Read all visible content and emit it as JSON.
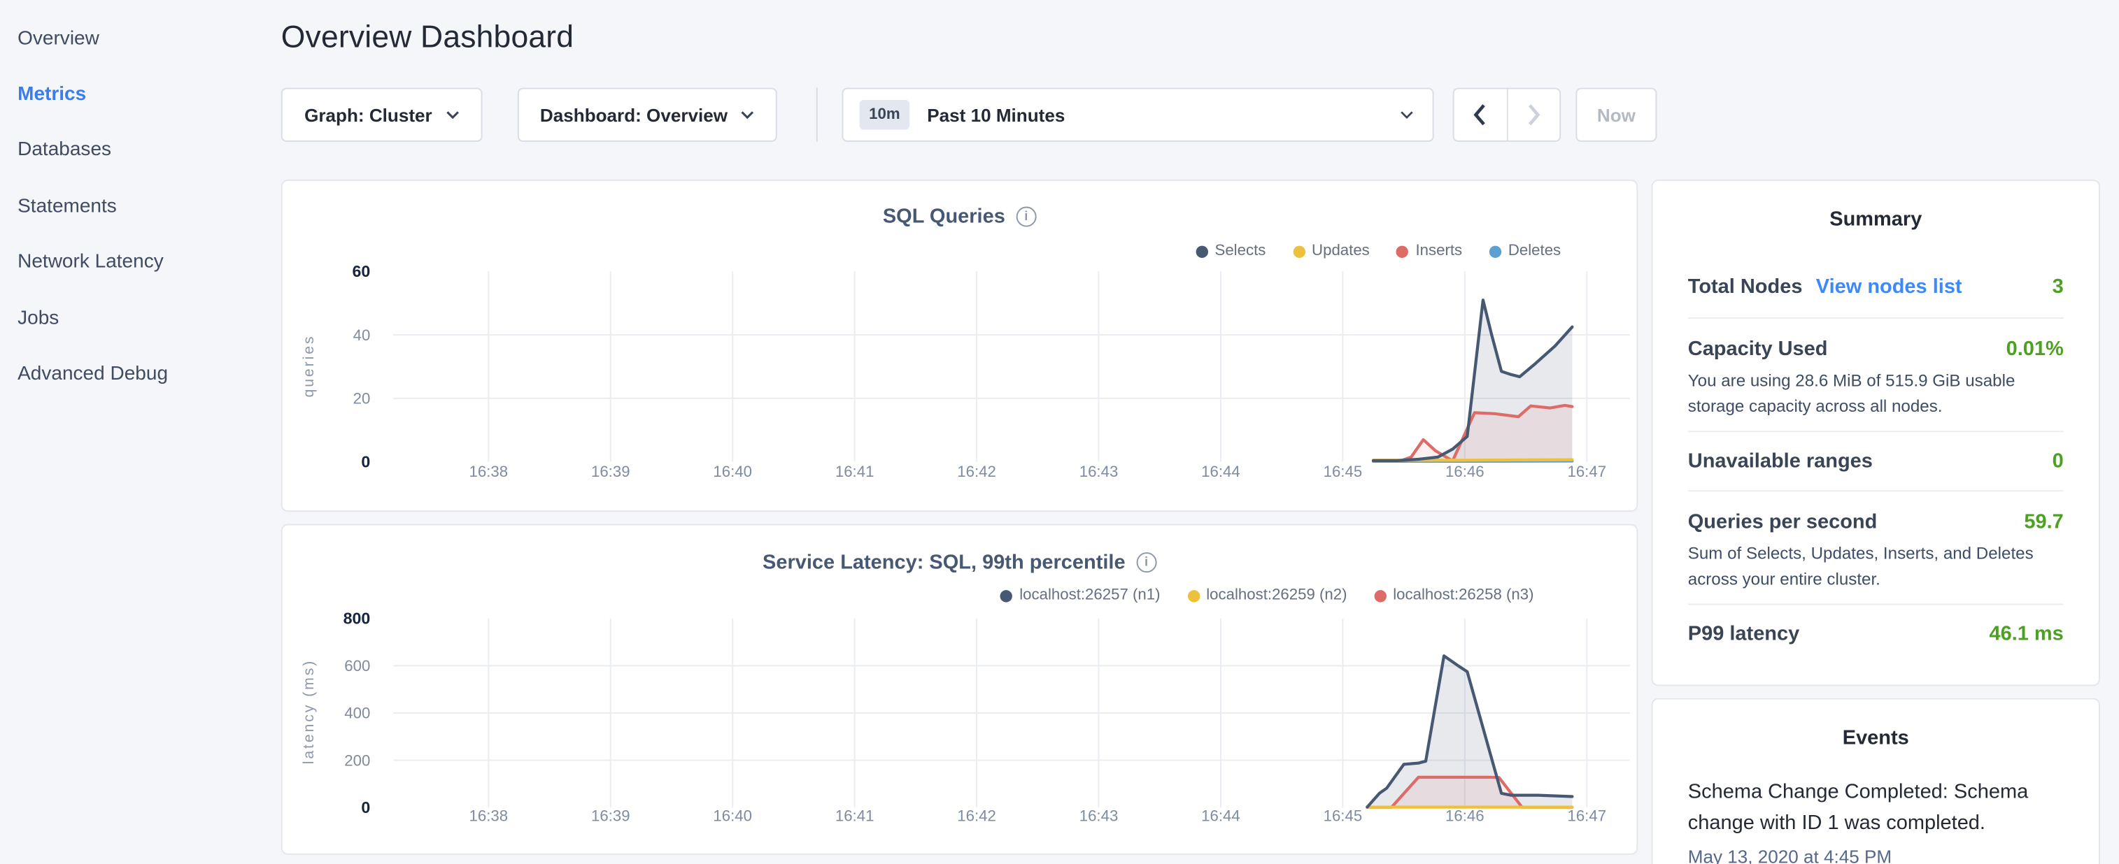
{
  "sidebar": {
    "items": [
      {
        "label": "Overview",
        "active": false
      },
      {
        "label": "Metrics",
        "active": true
      },
      {
        "label": "Databases",
        "active": false
      },
      {
        "label": "Statements",
        "active": false
      },
      {
        "label": "Network Latency",
        "active": false
      },
      {
        "label": "Jobs",
        "active": false
      },
      {
        "label": "Advanced Debug",
        "active": false
      }
    ]
  },
  "header": {
    "title": "Overview Dashboard"
  },
  "toolbar": {
    "graph_label": "Graph: Cluster",
    "dashboard_label": "Dashboard: Overview",
    "range_badge": "10m",
    "range_label": "Past 10 Minutes",
    "now_label": "Now"
  },
  "colors": {
    "accent_blue": "#3b7dec",
    "link_blue": "#3d89f7",
    "value_green": "#4da122",
    "series_navy": "#475872",
    "series_yellow": "#edc13c",
    "series_red": "#dd6b68",
    "series_blue": "#5ba0d0",
    "grid": "#e9ecf2"
  },
  "chart_data": [
    {
      "type": "area",
      "title": "SQL Queries",
      "ylabel": "queries",
      "ylim": [
        0,
        60
      ],
      "yticks": [
        0,
        20,
        40,
        60
      ],
      "xticks": [
        "16:38",
        "16:39",
        "16:40",
        "16:41",
        "16:42",
        "16:43",
        "16:44",
        "16:45",
        "16:46",
        "16:47"
      ],
      "x_unit": "minutes after 16:38",
      "legend_position": "top-right",
      "grid": true,
      "series": [
        {
          "name": "Selects",
          "color": "#475872",
          "fill": "rgba(71,88,114,0.13)",
          "points": [
            [
              7.25,
              0.4
            ],
            [
              7.45,
              0.4
            ],
            [
              7.62,
              0.8
            ],
            [
              7.78,
              1.5
            ],
            [
              7.9,
              4
            ],
            [
              8.02,
              8
            ],
            [
              8.15,
              51
            ],
            [
              8.22,
              40
            ],
            [
              8.3,
              28.5
            ],
            [
              8.38,
              27.5
            ],
            [
              8.45,
              26.8
            ],
            [
              8.58,
              31
            ],
            [
              8.74,
              36.5
            ],
            [
              8.88,
              42.5
            ]
          ]
        },
        {
          "name": "Updates",
          "color": "#edc13c",
          "fill": "none",
          "points": [
            [
              7.25,
              0.5
            ],
            [
              8.0,
              0.5
            ],
            [
              8.88,
              0.7
            ]
          ]
        },
        {
          "name": "Inserts",
          "color": "#dd6b68",
          "fill": "rgba(221,107,104,0.10)",
          "points": [
            [
              7.25,
              0.2
            ],
            [
              7.48,
              0.4
            ],
            [
              7.56,
              1.5
            ],
            [
              7.66,
              7
            ],
            [
              7.76,
              3.5
            ],
            [
              7.9,
              0.3
            ],
            [
              8.08,
              15.5
            ],
            [
              8.24,
              15.2
            ],
            [
              8.36,
              14.6
            ],
            [
              8.44,
              14.2
            ],
            [
              8.54,
              17.6
            ],
            [
              8.7,
              17
            ],
            [
              8.82,
              17.8
            ],
            [
              8.88,
              17.4
            ]
          ]
        },
        {
          "name": "Deletes",
          "color": "#5ba0d0",
          "fill": "none",
          "points": [
            [
              7.25,
              0.15
            ],
            [
              8.0,
              0.15
            ],
            [
              8.88,
              0.25
            ]
          ]
        }
      ]
    },
    {
      "type": "area",
      "title": "Service Latency: SQL, 99th percentile",
      "ylabel": "latency (ms)",
      "ylim": [
        0,
        800
      ],
      "yticks": [
        0,
        200,
        400,
        600,
        800
      ],
      "xticks": [
        "16:38",
        "16:39",
        "16:40",
        "16:41",
        "16:42",
        "16:43",
        "16:44",
        "16:45",
        "16:46",
        "16:47"
      ],
      "x_unit": "minutes after 16:38",
      "legend_position": "top-right",
      "grid": true,
      "series": [
        {
          "name": "localhost:26257 (n1)",
          "color": "#475872",
          "fill": "rgba(71,88,114,0.13)",
          "points": [
            [
              7.2,
              2
            ],
            [
              7.3,
              60
            ],
            [
              7.36,
              82
            ],
            [
              7.5,
              183
            ],
            [
              7.62,
              188
            ],
            [
              7.68,
              196
            ],
            [
              7.83,
              642
            ],
            [
              7.95,
              598
            ],
            [
              8.02,
              575
            ],
            [
              8.3,
              60
            ],
            [
              8.38,
              52
            ],
            [
              8.6,
              52
            ],
            [
              8.88,
              46
            ]
          ]
        },
        {
          "name": "localhost:26259 (n2)",
          "color": "#edc13c",
          "fill": "none",
          "points": [
            [
              7.2,
              2
            ],
            [
              8.0,
              2
            ],
            [
              8.88,
              2
            ]
          ]
        },
        {
          "name": "localhost:26258 (n3)",
          "color": "#dd6b68",
          "fill": "rgba(221,107,104,0.10)",
          "points": [
            [
              7.2,
              1
            ],
            [
              7.4,
              1
            ],
            [
              7.62,
              128
            ],
            [
              8.2,
              128
            ],
            [
              8.28,
              127
            ],
            [
              8.47,
              1
            ],
            [
              8.88,
              1
            ]
          ]
        }
      ]
    }
  ],
  "summary": {
    "title": "Summary",
    "rows": [
      {
        "label": "Total Nodes",
        "link": "View nodes list",
        "value": "3"
      },
      {
        "label": "Capacity Used",
        "value": "0.01%",
        "description": "You are using 28.6 MiB of 515.9 GiB usable storage capacity across all nodes."
      },
      {
        "label": "Unavailable ranges",
        "value": "0"
      },
      {
        "label": "Queries per second",
        "value": "59.7",
        "description": "Sum of Selects, Updates, Inserts, and Deletes across your entire cluster."
      },
      {
        "label": "P99 latency",
        "value": "46.1 ms"
      }
    ]
  },
  "events": {
    "title": "Events",
    "items": [
      {
        "message": "Schema Change Completed: Schema change with ID 1 was completed.",
        "timestamp": "May 13, 2020 at 4:45 PM"
      }
    ]
  }
}
